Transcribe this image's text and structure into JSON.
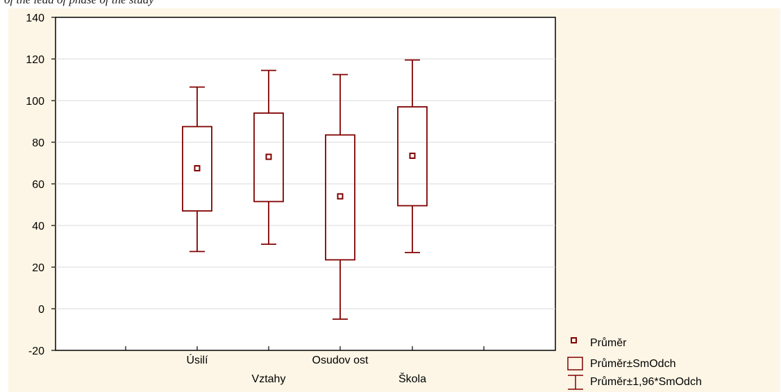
{
  "caption_fragment": "of the lead of phase of the study",
  "chart_data": {
    "type": "box",
    "categories": [
      "Úsilí",
      "Vztahy",
      "Osudov ost",
      "Škola"
    ],
    "series": [
      {
        "name": "Průměr",
        "values": [
          67.5,
          73,
          54,
          73.5
        ]
      },
      {
        "name": "Průměr±SmOdch",
        "low": [
          47,
          51.5,
          23.5,
          49.5
        ],
        "high": [
          87.5,
          94,
          83.5,
          97
        ]
      },
      {
        "name": "Průměr±1,96*SmOdch",
        "low": [
          27.5,
          31,
          -5,
          27
        ],
        "high": [
          106.5,
          114.5,
          112.5,
          119.5
        ]
      }
    ],
    "ylim": [
      -20,
      140
    ],
    "yticks": [
      "-20",
      "0",
      "20",
      "40",
      "60",
      "80",
      "100",
      "120",
      "140"
    ],
    "grid": true,
    "legend": "bottom-right",
    "colors": {
      "series": "#800000",
      "background": "#fdf6e6",
      "plot": "#ffffff",
      "grid": "#d8d8d8"
    }
  },
  "legend": {
    "mean": "Průměr",
    "sd": "Průměr±SmOdch",
    "ci": "Průměr±1,96*SmOdch"
  }
}
